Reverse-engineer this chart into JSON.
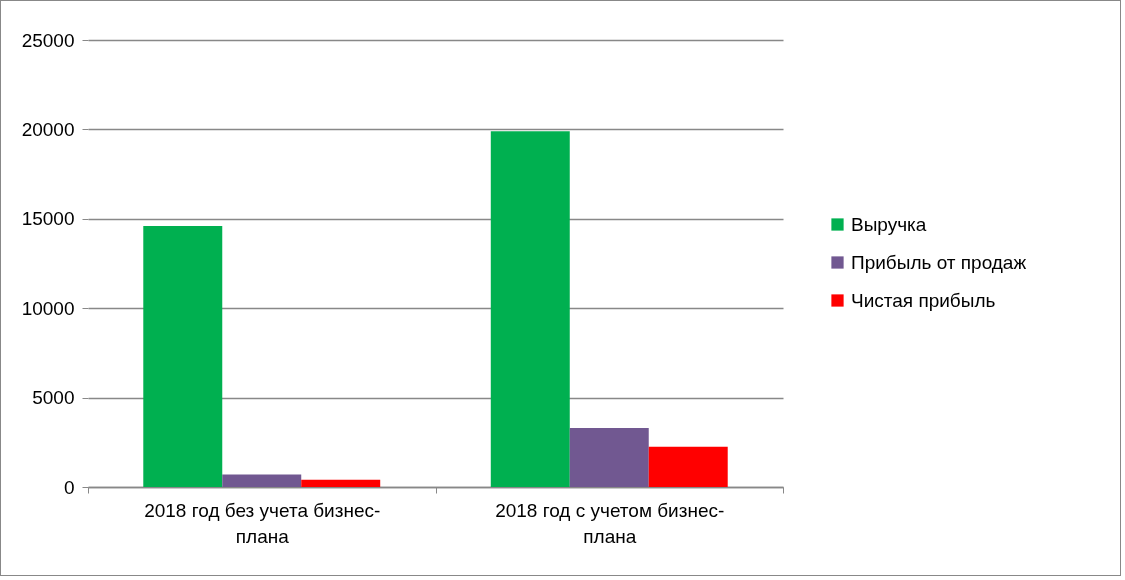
{
  "chart_data": {
    "type": "bar",
    "categories": [
      "2018 год без учета бизнес-плана",
      "2018 год с учетом бизнес-плана"
    ],
    "series": [
      {
        "name": "Выручка",
        "color": "#00b050",
        "values": [
          14600,
          19900
        ]
      },
      {
        "name": "Прибыль от продаж",
        "color": "#715891",
        "values": [
          700,
          3300
        ]
      },
      {
        "name": "Чистая прибыль",
        "color": "#ff0000",
        "values": [
          400,
          2250
        ]
      }
    ],
    "ylim": [
      0,
      25000
    ],
    "yticks": [
      0,
      5000,
      10000,
      15000,
      20000,
      25000
    ],
    "grid": "y",
    "legend": "right"
  }
}
